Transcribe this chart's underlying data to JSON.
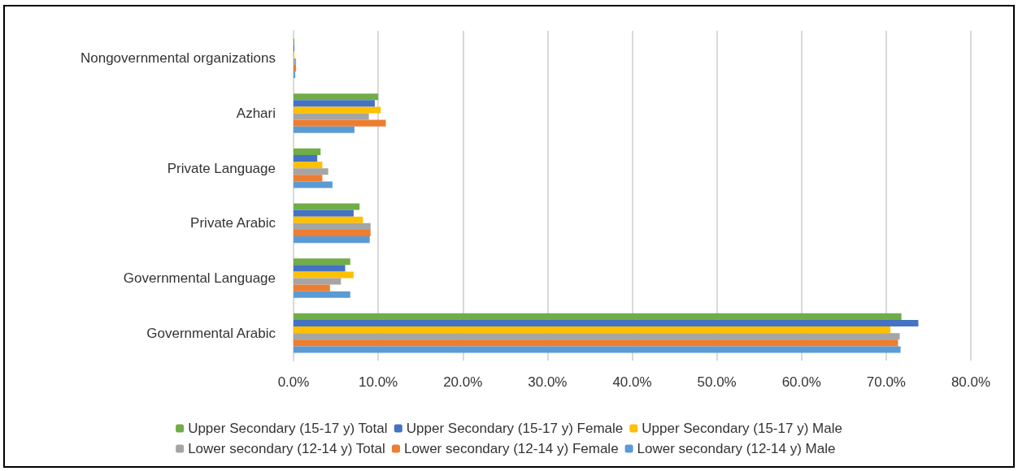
{
  "chart_data": {
    "type": "bar",
    "orientation": "horizontal",
    "categories": [
      "Nongovernmental organizations",
      "Azhari",
      "Private Language",
      "Private Arabic",
      "Governmental Language",
      "Governmental Arabic"
    ],
    "series": [
      {
        "name": "Upper Secondary (15-17 y) Total",
        "color": "#70ad47",
        "values": [
          0.1,
          10.0,
          3.2,
          7.8,
          6.7,
          71.8
        ]
      },
      {
        "name": "Upper Secondary (15-17 y) Female",
        "color": "#4472c4",
        "values": [
          0.1,
          9.6,
          2.8,
          7.1,
          6.1,
          73.8
        ]
      },
      {
        "name": "Upper Secondary (15-17 y) Male",
        "color": "#ffc000",
        "values": [
          0.1,
          10.3,
          3.4,
          8.2,
          7.1,
          70.5
        ]
      },
      {
        "name": "Lower secondary (12-14 y) Total",
        "color": "#a5a5a5",
        "values": [
          0.3,
          8.9,
          4.1,
          9.1,
          5.6,
          71.6
        ]
      },
      {
        "name": "Lower secondary (12-14 y) Female",
        "color": "#ed7d31",
        "values": [
          0.3,
          10.9,
          3.4,
          9.1,
          4.3,
          71.4
        ]
      },
      {
        "name": "Lower secondary (12-14 y) Male",
        "color": "#5b9bd5",
        "values": [
          0.2,
          7.2,
          4.6,
          9.0,
          6.7,
          71.7
        ]
      }
    ],
    "xlim": [
      0,
      80
    ],
    "xticks": [
      {
        "value": 0,
        "label": "0.0%"
      },
      {
        "value": 10,
        "label": "10.0%"
      },
      {
        "value": 20,
        "label": "20.0%"
      },
      {
        "value": 30,
        "label": "30.0%"
      },
      {
        "value": 40,
        "label": "40.0%"
      },
      {
        "value": 50,
        "label": "50.0%"
      },
      {
        "value": 60,
        "label": "60.0%"
      },
      {
        "value": 70,
        "label": "70.0%"
      },
      {
        "value": 80,
        "label": "80.0%"
      }
    ],
    "grid": "x",
    "legend": "bottom"
  }
}
